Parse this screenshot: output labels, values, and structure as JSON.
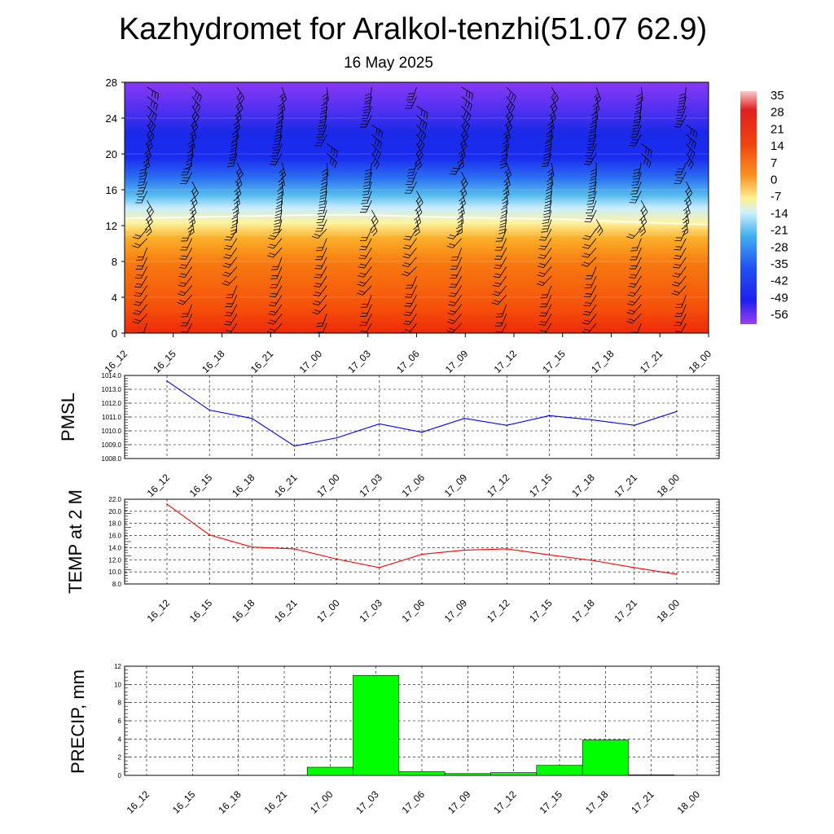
{
  "header": {
    "title": "Kazhydromet for Aralkol-tenzhi(51.07 62.9)",
    "date": "16 May 2025"
  },
  "colors": {
    "pmsl_line": "#0000ff",
    "temp_line": "#ff0000",
    "precip_bar": "#00ff00",
    "wind_barb": "#000000"
  },
  "time_labels": [
    "16_12",
    "16_15",
    "16_18",
    "16_21",
    "17_00",
    "17_03",
    "17_06",
    "17_09",
    "17_12",
    "17_15",
    "17_18",
    "17_21",
    "18_00"
  ],
  "colorbar": {
    "labels": [
      "35",
      "28",
      "21",
      "14",
      "7",
      "0",
      "-7",
      "-14",
      "-21",
      "-28",
      "-35",
      "-42",
      "-49",
      "-56"
    ]
  },
  "chart_data": [
    {
      "type": "heatmap",
      "title": "",
      "ylabel": "",
      "y_ticks": [
        "0",
        "4",
        "8",
        "12",
        "16",
        "20",
        "24",
        "28"
      ],
      "ylim": [
        0,
        28
      ],
      "x": [
        "16_12",
        "16_15",
        "16_18",
        "16_21",
        "17_00",
        "17_03",
        "17_06",
        "17_09",
        "17_12",
        "17_15",
        "17_18",
        "17_21",
        "18_00"
      ],
      "field": "temperature (°C) vs height, filled contours with wind barbs",
      "freezing_level": [
        12.8,
        12.9,
        13.0,
        13.1,
        13.2,
        13.2,
        13.0,
        12.9,
        12.8,
        12.7,
        12.5,
        12.3,
        12.1
      ],
      "colorbar_range": [
        -60,
        35
      ]
    },
    {
      "type": "line",
      "ylabel": "PMSL",
      "y_ticks": [
        "1008.0",
        "1009.0",
        "1010.0",
        "1011.0",
        "1012.0",
        "1013.0",
        "1014.0"
      ],
      "ylim": [
        1008.0,
        1014.0
      ],
      "x": [
        "16_12",
        "16_15",
        "16_18",
        "16_21",
        "17_00",
        "17_03",
        "17_06",
        "17_09",
        "17_12",
        "17_15",
        "17_18",
        "17_21",
        "18_00"
      ],
      "series": [
        {
          "values": [
            1013.6,
            1011.5,
            1010.9,
            1008.9,
            1009.5,
            1010.5,
            1009.9,
            1010.9,
            1010.4,
            1011.1,
            1010.8,
            1010.4,
            1011.4
          ]
        }
      ]
    },
    {
      "type": "line",
      "ylabel": "TEMP at 2 M",
      "y_ticks": [
        "8.0",
        "10.0",
        "12.0",
        "14.0",
        "16.0",
        "18.0",
        "20.0",
        "22.0"
      ],
      "ylim": [
        8.0,
        22.0
      ],
      "x": [
        "16_12",
        "16_15",
        "16_18",
        "16_21",
        "17_00",
        "17_03",
        "17_06",
        "17_09",
        "17_12",
        "17_15",
        "17_18",
        "17_21",
        "18_00"
      ],
      "series": [
        {
          "values": [
            21.2,
            16.1,
            14.1,
            13.8,
            12.1,
            10.7,
            12.9,
            13.6,
            13.8,
            12.8,
            11.9,
            10.7,
            9.6
          ]
        }
      ]
    },
    {
      "type": "bar",
      "ylabel": "PRECIP, mm",
      "y_ticks": [
        "0",
        "2",
        "4",
        "6",
        "8",
        "10",
        "12"
      ],
      "ylim": [
        0,
        12
      ],
      "categories": [
        "16_12",
        "16_15",
        "16_18",
        "16_21",
        "17_00",
        "17_03",
        "17_06",
        "17_09",
        "17_12",
        "17_15",
        "17_18",
        "17_21",
        "18_00"
      ],
      "values": [
        0,
        0,
        0,
        0,
        0.9,
        11.0,
        0.4,
        0.2,
        0.3,
        1.1,
        3.9,
        0.05,
        0
      ]
    }
  ]
}
